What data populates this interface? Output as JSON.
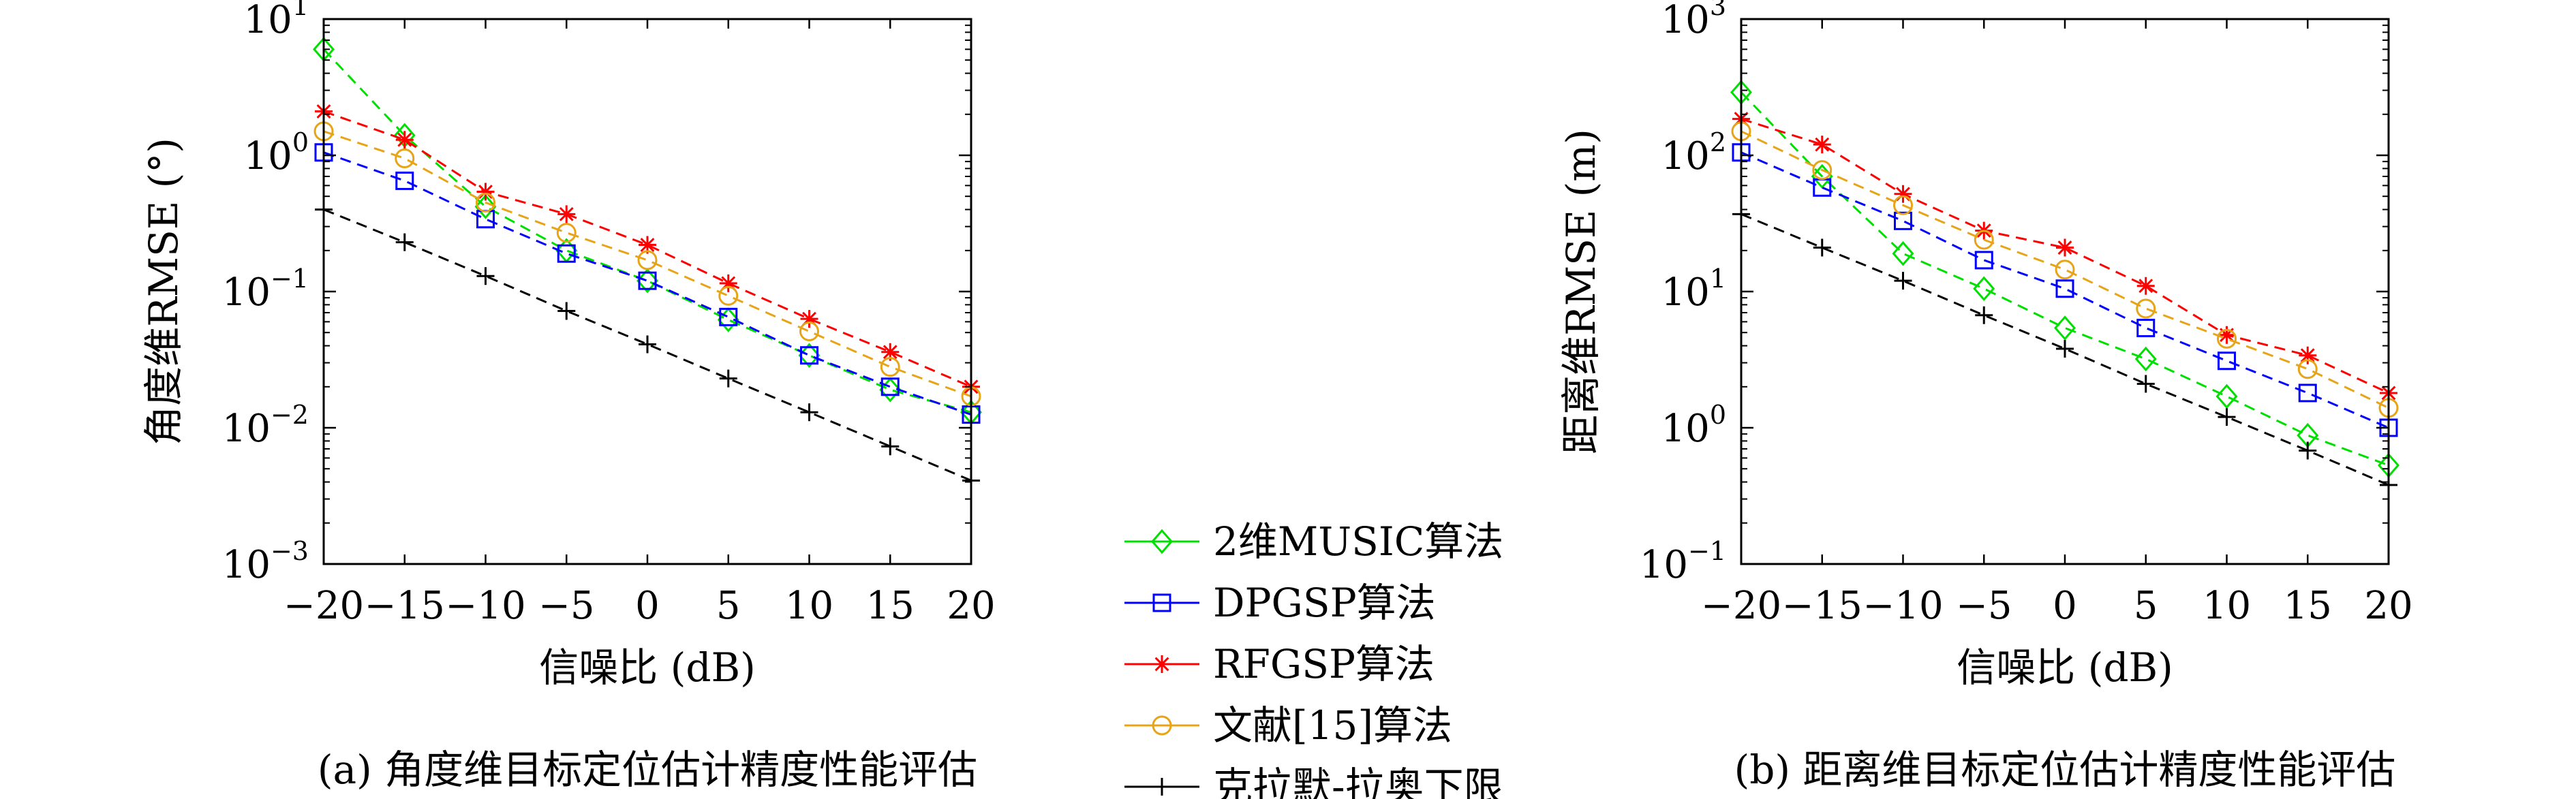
{
  "chart_data": [
    {
      "type": "line",
      "yscale": "log",
      "x": [
        -20,
        -15,
        -10,
        -5,
        0,
        5,
        10,
        15,
        20
      ],
      "xlim": [
        -20,
        20
      ],
      "ylim": [
        0.001,
        10
      ],
      "xticks": [
        "−20",
        "−15",
        "−10",
        "−5",
        "0",
        "5",
        "10",
        "15",
        "20"
      ],
      "yticks": [
        {
          "base": "10",
          "exp": "−3",
          "value": 0.001
        },
        {
          "base": "10",
          "exp": "−2",
          "value": 0.01
        },
        {
          "base": "10",
          "exp": "−1",
          "value": 0.1
        },
        {
          "base": "10",
          "exp": "0",
          "value": 1
        },
        {
          "base": "10",
          "exp": "1",
          "value": 10
        }
      ],
      "xlabel": "信噪比 (dB)",
      "ylabel": "角度维RMSE (°)",
      "caption": "(a) 角度维目标定位估计精度性能评估",
      "grid": false,
      "series": [
        {
          "name": "2维MUSIC算法",
          "color": "#00e000",
          "marker": "diamond",
          "values": [
            6.0,
            1.4,
            0.42,
            0.2,
            0.12,
            0.062,
            0.034,
            0.019,
            0.013
          ]
        },
        {
          "name": "DPGSP算法",
          "color": "#0000ff",
          "marker": "square",
          "values": [
            1.05,
            0.65,
            0.34,
            0.19,
            0.12,
            0.065,
            0.034,
            0.02,
            0.0125
          ]
        },
        {
          "name": "RFGSP算法",
          "color": "#ff0000",
          "marker": "asterisk",
          "values": [
            2.1,
            1.3,
            0.54,
            0.37,
            0.22,
            0.115,
            0.063,
            0.036,
            0.02
          ]
        },
        {
          "name": "文献[15]算法",
          "color": "#e8a417",
          "marker": "circle",
          "values": [
            1.5,
            0.95,
            0.45,
            0.27,
            0.17,
            0.093,
            0.051,
            0.028,
            0.017
          ]
        },
        {
          "name": "克拉默-拉奥下限",
          "color": "#000000",
          "marker": "plus",
          "values": [
            0.4,
            0.23,
            0.13,
            0.072,
            0.041,
            0.023,
            0.013,
            0.0073,
            0.0041
          ]
        }
      ]
    },
    {
      "type": "line",
      "yscale": "log",
      "x": [
        -20,
        -15,
        -10,
        -5,
        0,
        5,
        10,
        15,
        20
      ],
      "xlim": [
        -20,
        20
      ],
      "ylim": [
        0.1,
        1000
      ],
      "xticks": [
        "−20",
        "−15",
        "−10",
        "−5",
        "0",
        "5",
        "10",
        "15",
        "20"
      ],
      "yticks": [
        {
          "base": "10",
          "exp": "−1",
          "value": 0.1
        },
        {
          "base": "10",
          "exp": "0",
          "value": 1
        },
        {
          "base": "10",
          "exp": "1",
          "value": 10
        },
        {
          "base": "10",
          "exp": "2",
          "value": 100
        },
        {
          "base": "10",
          "exp": "3",
          "value": 1000
        }
      ],
      "xlabel": "信噪比 (dB)",
      "ylabel": "距离维RMSE (m)",
      "caption": "(b) 距离维目标定位估计精度性能评估",
      "grid": false,
      "series": [
        {
          "name": "2维MUSIC算法",
          "color": "#00e000",
          "marker": "diamond",
          "values": [
            290,
            70,
            19,
            10.5,
            5.4,
            3.2,
            1.7,
            0.88,
            0.53
          ]
        },
        {
          "name": "DPGSP算法",
          "color": "#0000ff",
          "marker": "square",
          "values": [
            105,
            58,
            33,
            17,
            10.5,
            5.4,
            3.1,
            1.8,
            1.0
          ]
        },
        {
          "name": "RFGSP算法",
          "color": "#ff0000",
          "marker": "asterisk",
          "values": [
            185,
            120,
            52,
            28,
            21,
            11,
            4.8,
            3.4,
            1.8
          ]
        },
        {
          "name": "文献[15]算法",
          "color": "#e8a417",
          "marker": "circle",
          "values": [
            150,
            78,
            43,
            24,
            14.5,
            7.5,
            4.5,
            2.7,
            1.4
          ]
        },
        {
          "name": "克拉默-拉奥下限",
          "color": "#000000",
          "marker": "plus",
          "values": [
            37,
            21,
            12,
            6.7,
            3.8,
            2.1,
            1.2,
            0.68,
            0.38
          ]
        }
      ]
    }
  ],
  "legend": {
    "placement": "bottom-center",
    "items": [
      {
        "label": "2维MUSIC算法",
        "color": "#00e000",
        "marker": "diamond"
      },
      {
        "label": "DPGSP算法",
        "color": "#0000ff",
        "marker": "square"
      },
      {
        "label": "RFGSP算法",
        "color": "#ff0000",
        "marker": "asterisk"
      },
      {
        "label": "文献[15]算法",
        "color": "#e8a417",
        "marker": "circle"
      },
      {
        "label": "克拉默-拉奥下限",
        "color": "#000000",
        "marker": "plus"
      }
    ]
  }
}
